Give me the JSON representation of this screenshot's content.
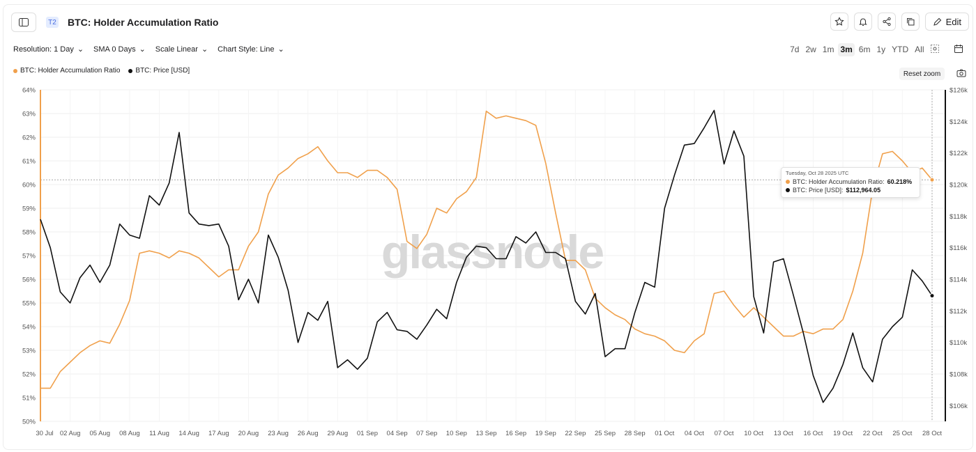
{
  "header": {
    "tier_badge": "T2",
    "title": "BTC: Holder Accumulation Ratio",
    "edit_label": "Edit"
  },
  "controls": {
    "resolution": "Resolution: 1 Day",
    "sma": "SMA 0 Days",
    "scale": "Scale Linear",
    "chart_style": "Chart Style: Line"
  },
  "ranges": [
    "7d",
    "2w",
    "1m",
    "3m",
    "6m",
    "1y",
    "YTD",
    "All"
  ],
  "active_range": "3m",
  "legend": {
    "series1": "BTC: Holder Accumulation Ratio",
    "series2": "BTC: Price [USD]"
  },
  "reset_zoom": "Reset zoom",
  "watermark": "glassnode",
  "tooltip": {
    "date": "Tuesday, Oct 28 2025 UTC",
    "row1_label": "BTC: Holder Accumulation Ratio:",
    "row1_value": "60.218%",
    "row2_label": "BTC: Price [USD]:",
    "row2_value": "$112,964.05"
  },
  "colors": {
    "ratio": "#f0a04b",
    "price": "#111111",
    "accent": "#4a6ee0"
  },
  "chart_data": {
    "type": "line",
    "x_start": "30 Jul",
    "x_end": "28 Oct",
    "x_ticks": [
      "30 Jul",
      "02 Aug",
      "05 Aug",
      "08 Aug",
      "11 Aug",
      "14 Aug",
      "17 Aug",
      "20 Aug",
      "23 Aug",
      "26 Aug",
      "29 Aug",
      "01 Sep",
      "04 Sep",
      "07 Sep",
      "10 Sep",
      "13 Sep",
      "16 Sep",
      "19 Sep",
      "22 Sep",
      "25 Sep",
      "28 Sep",
      "01 Oct",
      "04 Oct",
      "07 Oct",
      "10 Oct",
      "13 Oct",
      "16 Oct",
      "19 Oct",
      "22 Oct",
      "25 Oct",
      "28 Oct"
    ],
    "y_left": {
      "min": 50,
      "max": 64,
      "ticks": [
        "50%",
        "51%",
        "52%",
        "53%",
        "54%",
        "55%",
        "56%",
        "57%",
        "58%",
        "59%",
        "60%",
        "61%",
        "62%",
        "63%",
        "64%"
      ]
    },
    "y_right": {
      "min": 105,
      "max": 126,
      "ticks": [
        "$106k",
        "$108k",
        "$110k",
        "$112k",
        "$114k",
        "$116k",
        "$118k",
        "$120k",
        "$122k",
        "$124k",
        "$126k"
      ]
    },
    "grid": true,
    "series": [
      {
        "name": "BTC: Holder Accumulation Ratio",
        "axis": "left",
        "color": "#f0a04b",
        "values": [
          51.4,
          51.4,
          52.1,
          52.5,
          52.9,
          53.2,
          53.4,
          53.3,
          54.1,
          55.1,
          57.1,
          57.2,
          57.1,
          56.9,
          57.2,
          57.1,
          56.9,
          56.5,
          56.1,
          56.4,
          56.4,
          57.4,
          58.0,
          59.6,
          60.4,
          60.7,
          61.1,
          61.3,
          61.6,
          61.0,
          60.5,
          60.5,
          60.3,
          60.6,
          60.6,
          60.3,
          59.8,
          57.6,
          57.3,
          57.9,
          59.0,
          58.8,
          59.4,
          59.7,
          60.3,
          63.1,
          62.8,
          62.9,
          62.8,
          62.7,
          62.5,
          60.9,
          58.8,
          56.8,
          56.8,
          56.4,
          55.2,
          54.8,
          54.5,
          54.3,
          53.9,
          53.7,
          53.6,
          53.4,
          53.0,
          52.9,
          53.4,
          53.7,
          55.4,
          55.5,
          54.9,
          54.4,
          54.8,
          54.4,
          54.0,
          53.6,
          53.6,
          53.8,
          53.7,
          53.9,
          53.9,
          54.3,
          55.5,
          57.1,
          59.8,
          61.3,
          61.4,
          61.0,
          60.5,
          60.7,
          60.2
        ]
      },
      {
        "name": "BTC: Price [USD]",
        "axis": "right",
        "color": "#111111",
        "values": [
          117.8,
          116.0,
          113.2,
          112.5,
          114.1,
          114.9,
          113.8,
          114.9,
          117.5,
          116.8,
          116.6,
          119.3,
          118.7,
          120.1,
          123.3,
          118.2,
          117.5,
          117.4,
          117.5,
          116.1,
          112.7,
          114.0,
          112.5,
          116.8,
          115.4,
          113.3,
          110.0,
          111.9,
          111.4,
          112.6,
          108.4,
          108.9,
          108.3,
          109.0,
          111.3,
          111.9,
          110.8,
          110.7,
          110.2,
          111.1,
          112.1,
          111.5,
          113.8,
          115.4,
          116.1,
          116.0,
          115.3,
          115.3,
          116.7,
          116.3,
          117.0,
          115.7,
          115.7,
          115.3,
          112.6,
          111.8,
          113.1,
          109.1,
          109.6,
          109.6,
          111.9,
          113.8,
          113.5,
          118.5,
          120.6,
          122.5,
          122.6,
          123.6,
          124.7,
          121.3,
          123.4,
          121.8,
          112.9,
          110.6,
          115.1,
          115.3,
          113.0,
          110.6,
          107.9,
          106.2,
          107.1,
          108.6,
          110.6,
          108.4,
          107.5,
          110.2,
          111.0,
          111.6,
          114.6,
          113.9,
          112.96
        ]
      }
    ]
  }
}
